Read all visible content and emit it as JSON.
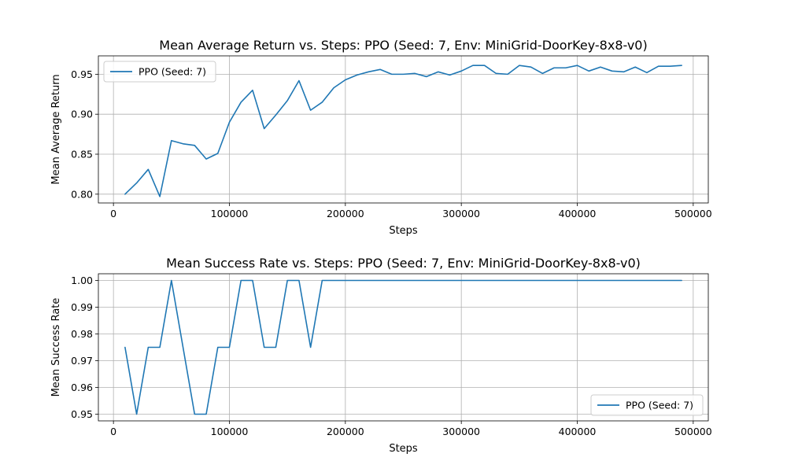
{
  "chart_data": [
    {
      "type": "line",
      "title": "Mean Average Return vs. Steps: PPO (Seed: 7, Env: MiniGrid-DoorKey-8x8-v0)",
      "xlabel": "Steps",
      "ylabel": "Mean Average Return",
      "xlim": [
        -13000,
        513000
      ],
      "ylim": [
        0.789,
        0.973
      ],
      "xticks": [
        0,
        100000,
        200000,
        300000,
        400000,
        500000
      ],
      "yticks": [
        0.8,
        0.85,
        0.9,
        0.95
      ],
      "ytick_labels": [
        "0.80",
        "0.85",
        "0.90",
        "0.95"
      ],
      "grid": true,
      "legend": "top-left",
      "color": "#1f77b4",
      "series": [
        {
          "name": "PPO (Seed: 7)",
          "x": [
            10000,
            20000,
            30000,
            40000,
            50000,
            60000,
            70000,
            80000,
            90000,
            100000,
            110000,
            120000,
            130000,
            140000,
            150000,
            160000,
            170000,
            180000,
            190000,
            200000,
            210000,
            220000,
            230000,
            240000,
            250000,
            260000,
            270000,
            280000,
            290000,
            300000,
            310000,
            320000,
            330000,
            340000,
            350000,
            360000,
            370000,
            380000,
            390000,
            400000,
            410000,
            420000,
            430000,
            440000,
            450000,
            460000,
            470000,
            480000,
            490000
          ],
          "values": [
            0.8,
            0.814,
            0.831,
            0.797,
            0.867,
            0.863,
            0.861,
            0.844,
            0.851,
            0.89,
            0.915,
            0.93,
            0.882,
            0.899,
            0.917,
            0.942,
            0.905,
            0.915,
            0.933,
            0.943,
            0.949,
            0.953,
            0.956,
            0.95,
            0.95,
            0.951,
            0.947,
            0.953,
            0.949,
            0.954,
            0.961,
            0.961,
            0.951,
            0.95,
            0.961,
            0.959,
            0.951,
            0.958,
            0.958,
            0.961,
            0.954,
            0.959,
            0.954,
            0.953,
            0.959,
            0.952,
            0.96,
            0.96,
            0.961
          ]
        }
      ]
    },
    {
      "type": "line",
      "title": "Mean Success Rate vs. Steps: PPO (Seed: 7, Env: MiniGrid-DoorKey-8x8-v0)",
      "xlabel": "Steps",
      "ylabel": "Mean Success Rate",
      "xlim": [
        -13000,
        513000
      ],
      "ylim": [
        0.9475,
        1.0025
      ],
      "xticks": [
        0,
        100000,
        200000,
        300000,
        400000,
        500000
      ],
      "yticks": [
        0.95,
        0.96,
        0.97,
        0.98,
        0.99,
        1.0
      ],
      "ytick_labels": [
        "0.95",
        "0.96",
        "0.97",
        "0.98",
        "0.99",
        "1.00"
      ],
      "grid": true,
      "legend": "bottom-right",
      "color": "#1f77b4",
      "series": [
        {
          "name": "PPO (Seed: 7)",
          "x": [
            10000,
            20000,
            30000,
            40000,
            50000,
            60000,
            70000,
            80000,
            90000,
            100000,
            110000,
            120000,
            130000,
            140000,
            150000,
            160000,
            170000,
            180000,
            190000,
            200000,
            210000,
            220000,
            230000,
            240000,
            250000,
            260000,
            270000,
            280000,
            290000,
            300000,
            310000,
            320000,
            330000,
            340000,
            350000,
            360000,
            370000,
            380000,
            390000,
            400000,
            410000,
            420000,
            430000,
            440000,
            450000,
            460000,
            470000,
            480000,
            490000
          ],
          "values": [
            0.975,
            0.95,
            0.975,
            0.975,
            1.0,
            0.975,
            0.95,
            0.95,
            0.975,
            0.975,
            1.0,
            1.0,
            0.975,
            0.975,
            1.0,
            1.0,
            0.975,
            1.0,
            1.0,
            1.0,
            1.0,
            1.0,
            1.0,
            1.0,
            1.0,
            1.0,
            1.0,
            1.0,
            1.0,
            1.0,
            1.0,
            1.0,
            1.0,
            1.0,
            1.0,
            1.0,
            1.0,
            1.0,
            1.0,
            1.0,
            1.0,
            1.0,
            1.0,
            1.0,
            1.0,
            1.0,
            1.0,
            1.0,
            1.0
          ]
        }
      ]
    }
  ]
}
